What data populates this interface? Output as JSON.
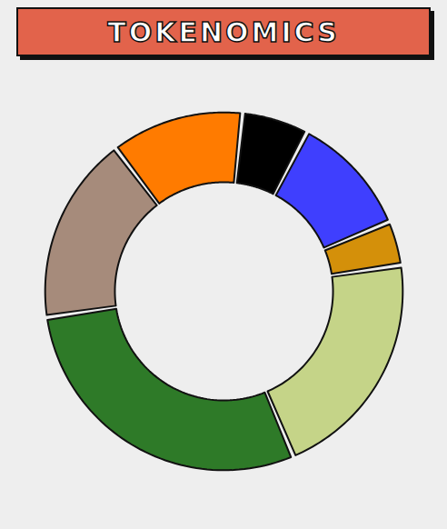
{
  "chart_data": {
    "type": "pie",
    "title": "TOKENOMICS",
    "values": [
      6,
      11,
      4,
      21,
      29,
      17,
      12
    ],
    "colors": [
      "#000000",
      "#3f3ffe",
      "#d4900a",
      "#c5d488",
      "#2e7a28",
      "#a68b7b",
      "#ff7b00"
    ]
  }
}
